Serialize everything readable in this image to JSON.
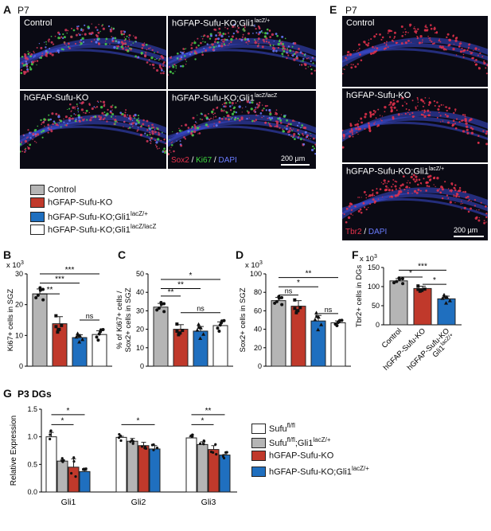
{
  "panelA": {
    "letter": "A",
    "age": "P7",
    "images": [
      {
        "label": "Control"
      },
      {
        "label": "hGFAP-Sufu-KO;Gli1",
        "sup": "lacZ/+"
      },
      {
        "label": "hGFAP-Sufu-KO"
      },
      {
        "label": "hGFAP-Sufu-KO;Gli1",
        "sup": "lacZ/lacZ"
      }
    ],
    "stains": [
      {
        "text": "Sox2",
        "color": "#e8324c"
      },
      {
        "text": " / ",
        "color": "#ffffff"
      },
      {
        "text": "Ki67",
        "color": "#3fd83f"
      },
      {
        "text": " / ",
        "color": "#ffffff"
      },
      {
        "text": "DAPI",
        "color": "#6a7cff"
      }
    ],
    "scale": "200 µm"
  },
  "panelE": {
    "letter": "E",
    "age": "P7",
    "images": [
      {
        "label": "Control"
      },
      {
        "label": "hGFAP-Sufu-KO"
      },
      {
        "label": "hGFAP-Sufu-KO;Gli1",
        "sup": "lacZ/+"
      }
    ],
    "stains": [
      {
        "text": "Tbr2",
        "color": "#e8324c"
      },
      {
        "text": " / ",
        "color": "#ffffff"
      },
      {
        "text": "DAPI",
        "color": "#6a7cff"
      }
    ],
    "scale": "200 µm"
  },
  "legend1": [
    {
      "label": "Control",
      "sup": "",
      "color": "#b5b5b5"
    },
    {
      "label": "hGFAP-Sufu-KO",
      "sup": "",
      "color": "#c0392b"
    },
    {
      "label": "hGFAP-Sufu-KO;Gli1",
      "sup": "lacZ/+",
      "color": "#1f6fbf"
    },
    {
      "label": "hGFAP-Sufu-KO;Gli1",
      "sup": "lacZ/lacZ",
      "color": "#ffffff"
    }
  ],
  "legend2": [
    {
      "label": "Sufu",
      "sup": "fl/fl",
      "color": "#ffffff"
    },
    {
      "label": "Sufu",
      "sup": "fl/fl",
      "label2": ";Gli1",
      "sup2": "lacZ/+",
      "color": "#b5b5b5"
    },
    {
      "label": "hGFAP-Sufu-KO",
      "sup": "",
      "color": "#c0392b"
    },
    {
      "label": "hGFAP-Sufu-KO;Gli1",
      "sup": "lacZ/+",
      "color": "#1f6fbf"
    }
  ],
  "chart_data": [
    {
      "id": "B",
      "type": "bar",
      "multiplier": "x 10",
      "multiplier_exp": "3",
      "ylabel": "Ki67+ cells in SGZ",
      "ylim": [
        0,
        30
      ],
      "yticks": [
        0,
        10,
        20,
        30
      ],
      "colors": [
        "#b5b5b5",
        "#c0392b",
        "#1f6fbf",
        "#ffffff"
      ],
      "values": [
        23.5,
        13.8,
        9.3,
        10.3
      ],
      "errors": [
        1.6,
        2.3,
        0.9,
        1.2
      ],
      "sig": [
        {
          "from": 0,
          "to": 1,
          "label": "**",
          "y": 23.5
        },
        {
          "from": 0,
          "to": 2,
          "label": "***",
          "y": 27
        },
        {
          "from": 0,
          "to": 3,
          "label": "***",
          "y": 30
        },
        {
          "from": 2,
          "to": 3,
          "label": "ns",
          "y": 15
        }
      ]
    },
    {
      "id": "C",
      "type": "bar",
      "ylabel": "% of Ki67+ cells / Sox2+ cells in SGZ",
      "ylim": [
        0,
        50
      ],
      "yticks": [
        0,
        10,
        20,
        30,
        40,
        50
      ],
      "colors": [
        "#b5b5b5",
        "#c0392b",
        "#1f6fbf",
        "#ffffff"
      ],
      "values": [
        32,
        20,
        19,
        22
      ],
      "errors": [
        2,
        2.5,
        2.5,
        2
      ],
      "sig": [
        {
          "from": 0,
          "to": 1,
          "label": "**",
          "y": 38
        },
        {
          "from": 0,
          "to": 2,
          "label": "**",
          "y": 42
        },
        {
          "from": 0,
          "to": 3,
          "label": "*",
          "y": 47
        },
        {
          "from": 1,
          "to": 3,
          "label": "ns",
          "y": 29
        }
      ]
    },
    {
      "id": "D",
      "type": "bar",
      "multiplier": "x 10",
      "multiplier_exp": "3",
      "ylabel": "Sox2+ cells in SGZ",
      "ylim": [
        0,
        100
      ],
      "yticks": [
        0,
        20,
        40,
        60,
        80,
        100
      ],
      "colors": [
        "#b5b5b5",
        "#c0392b",
        "#1f6fbf",
        "#ffffff"
      ],
      "values": [
        71,
        65,
        49,
        47
      ],
      "errors": [
        3.5,
        6,
        6,
        2
      ],
      "sig": [
        {
          "from": 0,
          "to": 1,
          "label": "ns",
          "y": 77
        },
        {
          "from": 0,
          "to": 2,
          "label": "*",
          "y": 86
        },
        {
          "from": 0,
          "to": 3,
          "label": "**",
          "y": 96
        },
        {
          "from": 2,
          "to": 3,
          "label": "ns",
          "y": 57
        }
      ]
    },
    {
      "id": "F",
      "type": "bar",
      "multiplier": "x 10",
      "multiplier_exp": "3",
      "ylabel": "Tbr2+ cells in DGs",
      "ylim": [
        0,
        150
      ],
      "yticks": [
        0,
        50,
        100,
        150
      ],
      "categories": [
        {
          "label": "Control"
        },
        {
          "label": "hGFAP-Sufu-KO"
        },
        {
          "label": "hGFAP-Sufu-KO",
          "line2": "Gli1",
          "sup": "lacZ/+"
        }
      ],
      "colors": [
        "#b5b5b5",
        "#c0392b",
        "#1f6fbf"
      ],
      "values": [
        115,
        95,
        68
      ],
      "errors": [
        6,
        6,
        7
      ],
      "sig": [
        {
          "from": 0,
          "to": 1,
          "label": "*",
          "y": 125
        },
        {
          "from": 0,
          "to": 2,
          "label": "***",
          "y": 143
        },
        {
          "from": 1,
          "to": 2,
          "label": "*",
          "y": 106
        }
      ]
    },
    {
      "id": "G",
      "type": "bar",
      "title": "P3 DGs",
      "ylabel": "Relative Expression",
      "ylim": [
        0,
        1.5
      ],
      "yticks": [
        "0.0",
        "0.5",
        "1.0",
        "1.5"
      ],
      "groups": [
        "Gli1",
        "Gli2",
        "Gli3"
      ],
      "colors": [
        "#ffffff",
        "#b5b5b5",
        "#c0392b",
        "#1f6fbf"
      ],
      "series": [
        {
          "values": [
            1.0,
            0.99,
            0.98
          ],
          "errors": [
            0.08,
            0.02,
            0.02
          ]
        },
        {
          "values": [
            0.56,
            0.92,
            0.86
          ],
          "errors": [
            0.02,
            0.05,
            0.05
          ]
        },
        {
          "values": [
            0.45,
            0.84,
            0.77
          ],
          "errors": [
            0.15,
            0.06,
            0.07
          ]
        },
        {
          "values": [
            0.37,
            0.78,
            0.67
          ],
          "errors": [
            0.02,
            0.06,
            0.01
          ]
        }
      ],
      "sig": [
        {
          "group": 0,
          "from": 0,
          "to": 2,
          "label": "*",
          "y": 1.22
        },
        {
          "group": 0,
          "from": 0,
          "to": 3,
          "label": "*",
          "y": 1.4
        },
        {
          "group": 1,
          "from": 0,
          "to": 3,
          "label": "*",
          "y": 1.22
        },
        {
          "group": 2,
          "from": 0,
          "to": 2,
          "label": "*",
          "y": 1.22
        },
        {
          "group": 2,
          "from": 0,
          "to": 3,
          "label": "**",
          "y": 1.4
        }
      ]
    }
  ]
}
